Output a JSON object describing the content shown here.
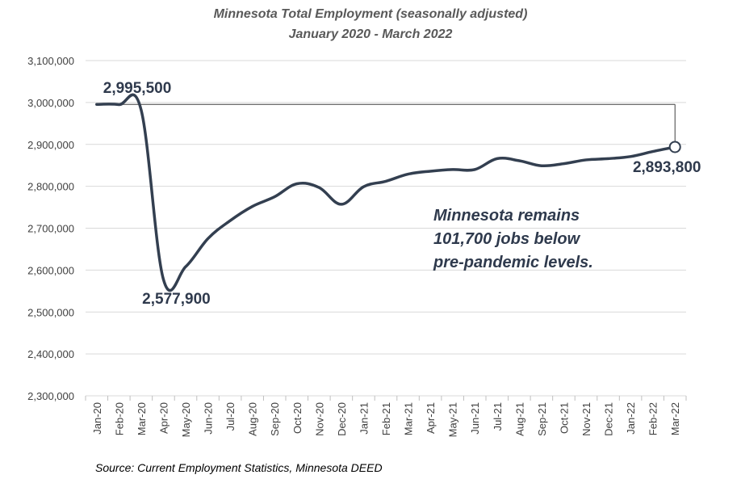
{
  "chart_data": {
    "type": "line",
    "title": "Minnesota Total Employment (seasonally adjusted)",
    "subtitle": "January 2020 - March 2022",
    "xlabel": "",
    "ylabel": "",
    "ylim": [
      2300000,
      3100000
    ],
    "yticks": [
      2300000,
      2400000,
      2500000,
      2600000,
      2700000,
      2800000,
      2900000,
      3000000,
      3100000
    ],
    "ytick_labels": [
      "2,300,000",
      "2,400,000",
      "2,500,000",
      "2,600,000",
      "2,700,000",
      "2,800,000",
      "2,900,000",
      "3,000,000",
      "3,100,000"
    ],
    "grid": true,
    "categories": [
      "Jan-20",
      "Feb-20",
      "Mar-20",
      "Apr-20",
      "May-20",
      "Jun-20",
      "Jul-20",
      "Aug-20",
      "Sep-20",
      "Oct-20",
      "Nov-20",
      "Dec-20",
      "Jan-21",
      "Feb-21",
      "Mar-21",
      "Apr-21",
      "May-21",
      "Jun-21",
      "Jul-21",
      "Aug-21",
      "Sep-21",
      "Oct-21",
      "Nov-21",
      "Dec-21",
      "Jan-22",
      "Feb-22",
      "Mar-22"
    ],
    "series": [
      {
        "name": "Minnesota Total Employment",
        "color": "#333f50",
        "values": [
          2995500,
          2995000,
          2982000,
          2577900,
          2608000,
          2675000,
          2718000,
          2752000,
          2775000,
          2806000,
          2797000,
          2757000,
          2799000,
          2812000,
          2829000,
          2836000,
          2840000,
          2840000,
          2866000,
          2861000,
          2849000,
          2854000,
          2863000,
          2866000,
          2871000,
          2883000,
          2893800
        ]
      }
    ],
    "data_labels": [
      {
        "text": "2,995,500",
        "category": "Jan-20",
        "value": 2995500
      },
      {
        "text": "2,577,900",
        "category": "Apr-20",
        "value": 2577900
      },
      {
        "text": "2,893,800",
        "category": "Mar-22",
        "value": 2893800
      }
    ],
    "reference_line_value": 2995500,
    "annotation": [
      "Minnesota remains",
      "101,700 jobs below",
      "pre-pandemic levels."
    ],
    "source": "Source: Current Employment Statistics, Minnesota DEED"
  }
}
